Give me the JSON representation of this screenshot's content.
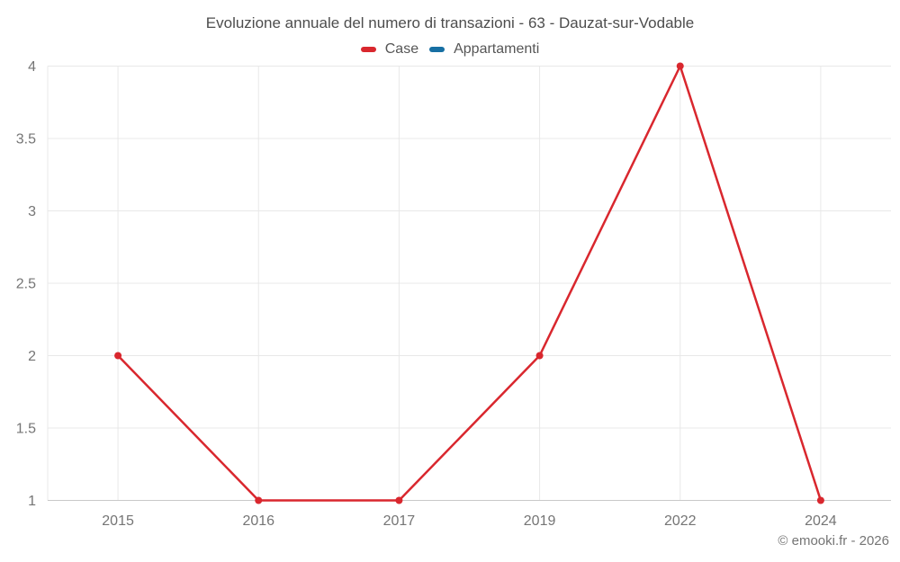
{
  "title": "Evoluzione annuale del numero di transazioni - 63 - Dauzat-sur-Vodable",
  "legend": [
    {
      "label": "Case",
      "color": "#d9272e"
    },
    {
      "label": "Appartamenti",
      "color": "#176fa3"
    }
  ],
  "footer": {
    "copyright": "© emooki.fr - 2026"
  },
  "colors": {
    "grid": "#e8e8e8",
    "axis": "#c9c9c9",
    "tick_label": "#757575"
  },
  "chart_data": {
    "type": "line",
    "categories": [
      "2015",
      "2016",
      "2017",
      "2019",
      "2022",
      "2024"
    ],
    "series": [
      {
        "name": "Case",
        "color": "#d9272e",
        "values": [
          2,
          1,
          1,
          2,
          4,
          1
        ]
      },
      {
        "name": "Appartamenti",
        "color": "#176fa3",
        "values": []
      }
    ],
    "yticks": [
      1,
      1.5,
      2,
      2.5,
      3,
      3.5,
      4
    ],
    "ylim": [
      1,
      4
    ],
    "grid": true,
    "legend_position": "top",
    "marker_radius": 4,
    "line_width": 2.5
  }
}
